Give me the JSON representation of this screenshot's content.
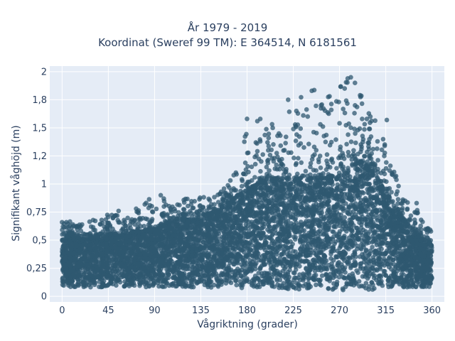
{
  "chart_data": {
    "type": "scatter",
    "title_lines": [
      "År 1979 - 2019",
      "Koordinat (Sweref 99 TM): E 364514, N 6181561"
    ],
    "xlabel": "Vågriktning (grader)",
    "ylabel": "Signifikant våghöjd (m)",
    "xlim": [
      -12,
      372
    ],
    "ylim": [
      -0.05,
      2.05
    ],
    "x_ticks": [
      0,
      45,
      90,
      135,
      180,
      225,
      270,
      315,
      360
    ],
    "x_tick_labels": [
      "0",
      "45",
      "90",
      "135",
      "180",
      "225",
      "270",
      "315",
      "360"
    ],
    "y_ticks": [
      0,
      0.25,
      0.5,
      0.75,
      1,
      1.25,
      1.5,
      1.75,
      2
    ],
    "y_tick_labels": [
      "0",
      "0,25",
      "0,5",
      "0,75",
      "1",
      "1,2",
      "1,5",
      "1,8",
      "2"
    ],
    "grid": true,
    "marker_color": "#2f5870",
    "plot_background": "#e5ecf6",
    "envelope": {
      "x": [
        0,
        10,
        20,
        45,
        60,
        90,
        100,
        120,
        135,
        150,
        165,
        180,
        200,
        225,
        240,
        260,
        280,
        290,
        300,
        310,
        320,
        330,
        345,
        360
      ],
      "dense_top": [
        0.5,
        0.55,
        0.5,
        0.55,
        0.55,
        0.6,
        0.65,
        0.68,
        0.7,
        0.75,
        0.85,
        0.95,
        1.05,
        1.05,
        1.05,
        1.05,
        1.15,
        1.2,
        1.15,
        1.0,
        0.85,
        0.7,
        0.55,
        0.45
      ],
      "max_top": [
        0.65,
        0.68,
        0.65,
        0.73,
        0.72,
        0.9,
        0.85,
        0.87,
        0.88,
        0.9,
        1.05,
        1.55,
        1.6,
        1.75,
        1.85,
        1.8,
        1.95,
        1.9,
        1.6,
        1.55,
        1.25,
        0.9,
        0.78,
        0.58
      ],
      "bottom": [
        0.08,
        0.08,
        0.08,
        0.08,
        0.08,
        0.08,
        0.08,
        0.08,
        0.08,
        0.07,
        0.07,
        0.07,
        0.07,
        0.06,
        0.06,
        0.06,
        0.05,
        0.05,
        0.06,
        0.06,
        0.07,
        0.07,
        0.08,
        0.08
      ]
    },
    "notable_points": [
      {
        "x": 281,
        "y": 1.95
      },
      {
        "x": 278,
        "y": 1.94
      },
      {
        "x": 285,
        "y": 1.9
      },
      {
        "x": 243,
        "y": 1.83
      },
      {
        "x": 275,
        "y": 1.85
      },
      {
        "x": 220,
        "y": 1.75
      },
      {
        "x": 290,
        "y": 1.79
      },
      {
        "x": 252,
        "y": 1.7
      },
      {
        "x": 262,
        "y": 1.66
      },
      {
        "x": 300,
        "y": 1.6
      },
      {
        "x": 228,
        "y": 1.65
      },
      {
        "x": 190,
        "y": 1.56
      },
      {
        "x": 180,
        "y": 1.58
      },
      {
        "x": 316,
        "y": 1.57
      },
      {
        "x": 239,
        "y": 1.6
      },
      {
        "x": 205,
        "y": 1.5
      },
      {
        "x": 211,
        "y": 1.45
      },
      {
        "x": 96,
        "y": 0.9
      },
      {
        "x": 99,
        "y": 0.87
      },
      {
        "x": 0,
        "y": 0.66
      },
      {
        "x": 55,
        "y": 0.76
      },
      {
        "x": 345,
        "y": 0.83
      }
    ]
  }
}
